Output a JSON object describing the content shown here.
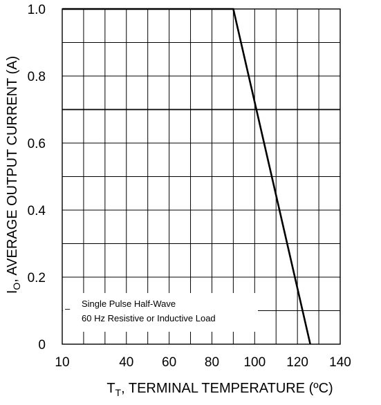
{
  "chart_data": {
    "type": "line",
    "x_ticks": [
      "10",
      "40",
      "60",
      "80",
      "100",
      "120",
      "140"
    ],
    "y_ticks": [
      "0",
      "0.2",
      "0.4",
      "0.6",
      "0.8",
      "1.0"
    ],
    "xlim": [
      10,
      140
    ],
    "ylim": [
      0,
      1.0
    ],
    "grid": true,
    "xlabel": {
      "main": "T",
      "sub": "T",
      "rest": ", TERMINAL TEMPERATURE (ºC)"
    },
    "ylabel": {
      "main": "I",
      "sub": "O",
      "rest": ", AVERAGE OUTPUT CURRENT (A)"
    },
    "series": [
      {
        "x": [
          10,
          90,
          126
        ],
        "y": [
          1.0,
          1.0,
          0.0
        ]
      }
    ],
    "reference_lines": [
      {
        "y": 0.7
      }
    ],
    "annotation": {
      "dash": "–",
      "lines": [
        "Single Pulse Half-Wave",
        "60 Hz Resistive or Inductive Load"
      ]
    },
    "colors": {
      "line": "#000000",
      "grid": "#000000",
      "background": "#ffffff"
    }
  }
}
